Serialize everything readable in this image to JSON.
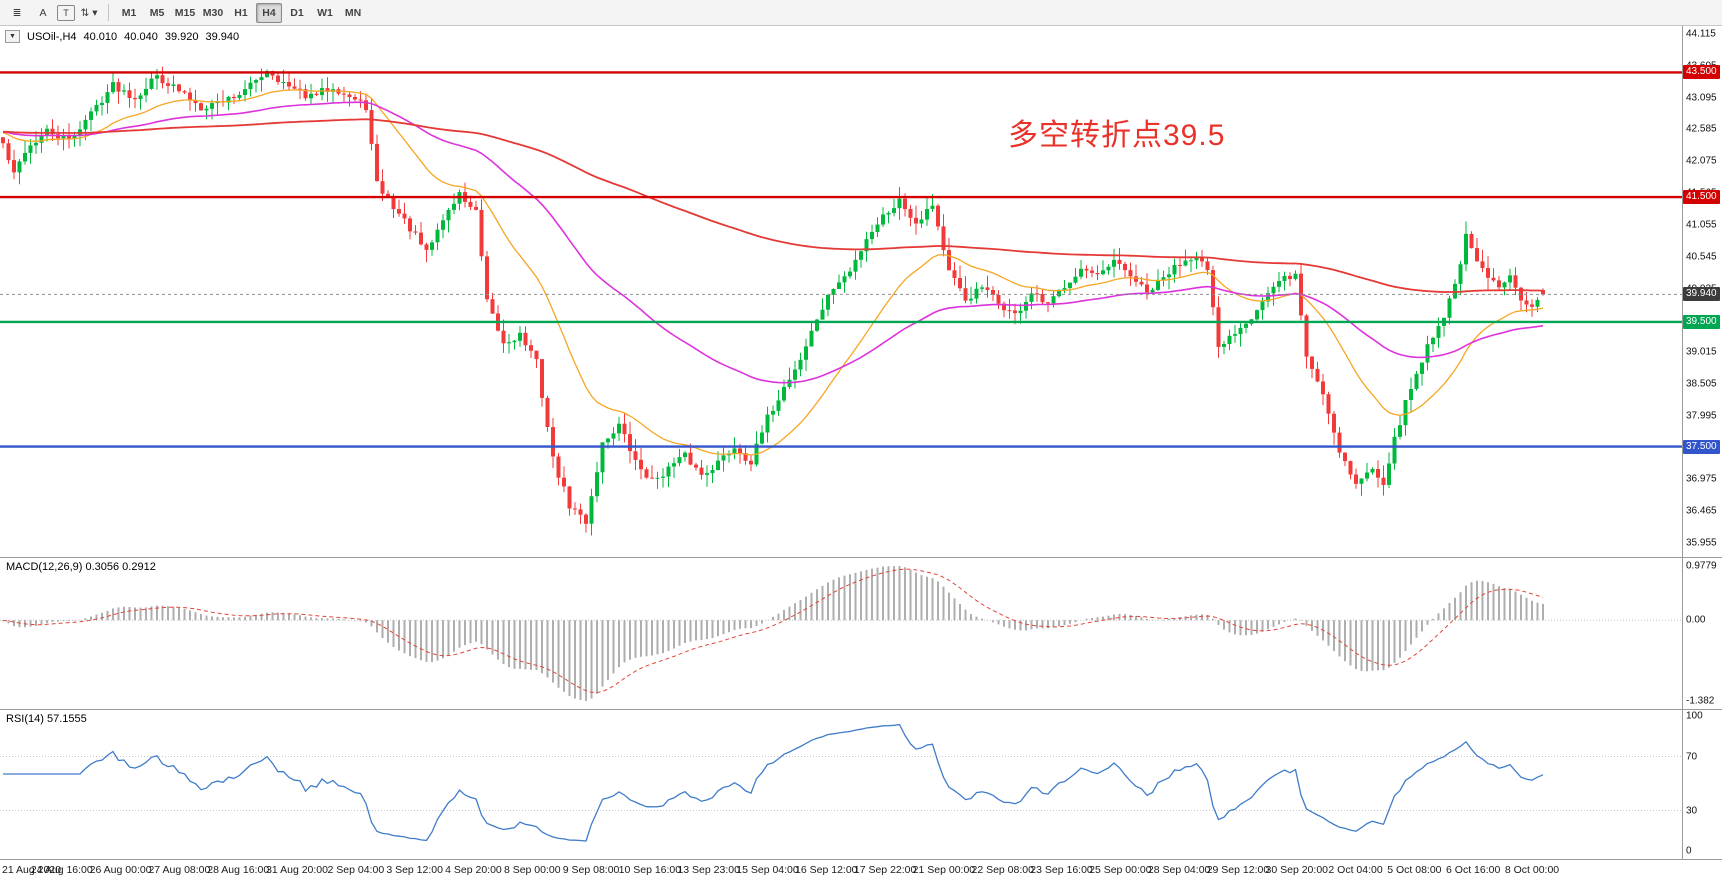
{
  "toolbar": {
    "tools": [
      {
        "name": "draw-tool",
        "glyph": "≣",
        "boxed": false
      },
      {
        "name": "text-tool",
        "glyph": "A",
        "boxed": false
      },
      {
        "name": "label-tool",
        "glyph": "T",
        "boxed": true
      },
      {
        "name": "indicator-dropdown",
        "glyph": "⇅ ▾",
        "boxed": false
      }
    ],
    "timeframes": [
      "M1",
      "M5",
      "M15",
      "M30",
      "H1",
      "H4",
      "D1",
      "W1",
      "MN"
    ],
    "active_timeframe": "H4"
  },
  "chart": {
    "symbol_label": "USOil-,H4",
    "ohlc": {
      "open": "40.010",
      "high": "40.040",
      "low": "39.920",
      "close": "39.940"
    },
    "annotation": {
      "text": "多空转折点39.5",
      "color": "#e8322a"
    },
    "levels": [
      {
        "price": 43.5,
        "label": "43.500",
        "color": "#d40000",
        "type": "resistance"
      },
      {
        "price": 41.5,
        "label": "41.500",
        "color": "#d40000",
        "type": "resistance"
      },
      {
        "price": 39.5,
        "label": "39.500",
        "color": "#00a651",
        "type": "support"
      },
      {
        "price": 37.5,
        "label": "37.500",
        "color": "#3355cc",
        "type": "support"
      }
    ],
    "current_price": {
      "value": 39.94,
      "label": "39.940",
      "badge_color": "#3c3c3c"
    },
    "y_axis": {
      "max": 44.115,
      "min": 35.955,
      "labels": [
        "44.115",
        "43.605",
        "43.095",
        "42.585",
        "42.075",
        "41.565",
        "41.055",
        "40.545",
        "40.035",
        "39.525",
        "39.015",
        "38.505",
        "37.995",
        "37.485",
        "36.975",
        "36.465",
        "35.955"
      ]
    },
    "x_axis_labels": [
      "21 Aug 2020",
      "24 Aug 16:00",
      "26 Aug 00:00",
      "27 Aug 08:00",
      "28 Aug 16:00",
      "31 Aug 20:00",
      "2 Sep 04:00",
      "3 Sep 12:00",
      "4 Sep 20:00",
      "8 Sep 00:00",
      "9 Sep 08:00",
      "10 Sep 16:00",
      "13 Sep 23:00",
      "15 Sep 04:00",
      "16 Sep 12:00",
      "17 Sep 22:00",
      "21 Sep 00:00",
      "22 Sep 08:00",
      "23 Sep 16:00",
      "25 Sep 00:00",
      "28 Sep 04:00",
      "29 Sep 12:00",
      "30 Sep 20:00",
      "2 Oct 04:00",
      "5 Oct 08:00",
      "6 Oct 16:00",
      "8 Oct 00:00"
    ],
    "moving_averages": [
      {
        "name": "ma-slow",
        "period": 250,
        "color": "#e53935"
      },
      {
        "name": "ma-mid",
        "period": 70,
        "color": "#dd33dd"
      },
      {
        "name": "ma-fast",
        "period": 24,
        "color": "#f5a623"
      }
    ],
    "up_color": "#00b93c",
    "down_color": "#f23a3a"
  },
  "macd": {
    "label": "MACD(12,26,9) 0.3056 0.2912",
    "params": [
      12,
      26,
      9
    ],
    "values": {
      "macd": "0.3056",
      "signal": "0.2912"
    },
    "axis": [
      "0.9779",
      "0.00",
      "-1.382"
    ],
    "colors": {
      "histogram": "#aeaeae",
      "signal": "#e0453a"
    }
  },
  "rsi": {
    "label": "RSI(14) 57.1555",
    "period": 14,
    "value": "57.1555",
    "axis": [
      "100",
      "70",
      "30",
      "0"
    ],
    "levels": [
      70,
      30
    ],
    "color": "#3f7cc9"
  },
  "chart_data": {
    "type": "candlestick",
    "symbol": "USOil",
    "timeframe": "H4",
    "candles": 281,
    "seed": 42,
    "prehistory_price": 42.55,
    "noise": 0.13,
    "wick": 0.2,
    "last_candle": {
      "open": 40.01,
      "high": 40.04,
      "low": 39.92,
      "close": 39.94
    },
    "price_anchors": [
      [
        0,
        42.35
      ],
      [
        2,
        41.85
      ],
      [
        4,
        42.25
      ],
      [
        8,
        42.55
      ],
      [
        12,
        42.4
      ],
      [
        16,
        42.85
      ],
      [
        20,
        43.3
      ],
      [
        24,
        43.1
      ],
      [
        28,
        43.45
      ],
      [
        32,
        43.2
      ],
      [
        36,
        42.95
      ],
      [
        40,
        43.05
      ],
      [
        44,
        43.2
      ],
      [
        48,
        43.55
      ],
      [
        52,
        43.25
      ],
      [
        56,
        43.1
      ],
      [
        60,
        43.28
      ],
      [
        64,
        43.05
      ],
      [
        66,
        42.95
      ],
      [
        68,
        41.7
      ],
      [
        71,
        41.35
      ],
      [
        74,
        41.0
      ],
      [
        77,
        40.6
      ],
      [
        80,
        41.15
      ],
      [
        83,
        41.55
      ],
      [
        86,
        41.25
      ],
      [
        88,
        39.8
      ],
      [
        91,
        39.15
      ],
      [
        94,
        39.3
      ],
      [
        97,
        38.85
      ],
      [
        100,
        37.3
      ],
      [
        103,
        36.55
      ],
      [
        106,
        36.3
      ],
      [
        109,
        37.55
      ],
      [
        112,
        37.85
      ],
      [
        115,
        37.25
      ],
      [
        118,
        36.95
      ],
      [
        121,
        37.15
      ],
      [
        124,
        37.35
      ],
      [
        127,
        37.05
      ],
      [
        130,
        37.25
      ],
      [
        133,
        37.5
      ],
      [
        136,
        37.25
      ],
      [
        139,
        37.95
      ],
      [
        142,
        38.45
      ],
      [
        145,
        38.9
      ],
      [
        148,
        39.55
      ],
      [
        151,
        40.05
      ],
      [
        154,
        40.3
      ],
      [
        157,
        40.85
      ],
      [
        160,
        41.2
      ],
      [
        163,
        41.45
      ],
      [
        166,
        41.1
      ],
      [
        169,
        41.4
      ],
      [
        172,
        40.3
      ],
      [
        175,
        39.85
      ],
      [
        178,
        40.05
      ],
      [
        181,
        39.8
      ],
      [
        184,
        39.6
      ],
      [
        187,
        39.95
      ],
      [
        190,
        39.75
      ],
      [
        193,
        40.1
      ],
      [
        196,
        40.35
      ],
      [
        199,
        40.2
      ],
      [
        202,
        40.45
      ],
      [
        205,
        40.25
      ],
      [
        208,
        39.95
      ],
      [
        211,
        40.2
      ],
      [
        214,
        40.45
      ],
      [
        217,
        40.6
      ],
      [
        219,
        40.3
      ],
      [
        221,
        39.05
      ],
      [
        224,
        39.35
      ],
      [
        227,
        39.6
      ],
      [
        230,
        39.95
      ],
      [
        233,
        40.2
      ],
      [
        235,
        40.25
      ],
      [
        237,
        38.95
      ],
      [
        240,
        38.35
      ],
      [
        243,
        37.45
      ],
      [
        246,
        36.9
      ],
      [
        249,
        37.15
      ],
      [
        251,
        36.95
      ],
      [
        253,
        37.6
      ],
      [
        255,
        38.2
      ],
      [
        258,
        38.9
      ],
      [
        260,
        39.3
      ],
      [
        262,
        39.6
      ],
      [
        264,
        40.1
      ],
      [
        266,
        40.85
      ],
      [
        268,
        40.45
      ],
      [
        270,
        40.2
      ],
      [
        272,
        40.05
      ],
      [
        274,
        40.3
      ],
      [
        276,
        39.9
      ],
      [
        278,
        39.72
      ],
      [
        280,
        39.94
      ]
    ]
  }
}
